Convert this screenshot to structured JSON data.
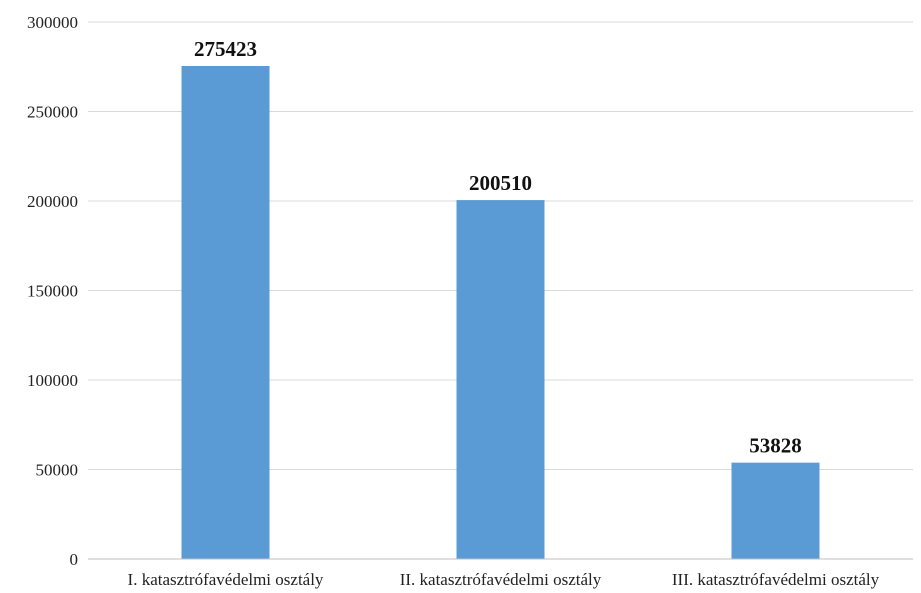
{
  "chart_data": {
    "type": "bar",
    "title": "",
    "xlabel": "",
    "ylabel": "",
    "categories": [
      "I. katasztrófavédelmi osztály",
      "II. katasztrófavédelmi osztály",
      "III. katasztrófavédelmi osztály"
    ],
    "values": [
      275423,
      200510,
      53828
    ],
    "data_labels": [
      "275423",
      "200510",
      "53828"
    ],
    "ylim": [
      0,
      300000
    ],
    "yticks": [
      0,
      50000,
      100000,
      150000,
      200000,
      250000,
      300000
    ],
    "ytick_labels": [
      "0",
      "50000",
      "100000",
      "150000",
      "200000",
      "250000",
      "300000"
    ],
    "grid": true,
    "legend": "none",
    "bar_color": "#5b9bd5"
  }
}
